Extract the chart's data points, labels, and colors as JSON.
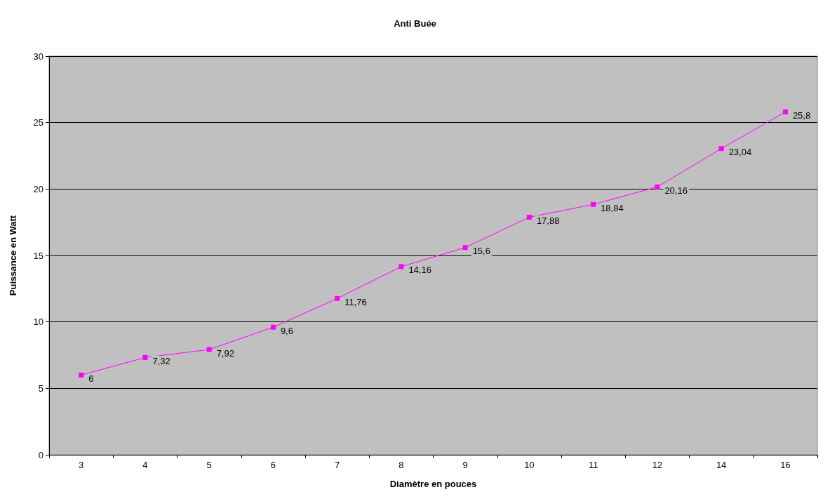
{
  "chart_data": {
    "type": "line",
    "title": "Anti Buée",
    "xlabel": "Diamètre en pouces",
    "ylabel": "Puissance en Watt",
    "categories": [
      "3",
      "4",
      "5",
      "6",
      "7",
      "8",
      "9",
      "10",
      "11",
      "12",
      "14",
      "16"
    ],
    "series": [
      {
        "color": "#ff00ff",
        "values": [
          6,
          7.32,
          7.92,
          9.6,
          11.76,
          14.16,
          15.6,
          17.88,
          18.84,
          20.16,
          23.04,
          25.8
        ],
        "value_labels": [
          "6",
          "7,32",
          "7,92",
          "9,6",
          "11,76",
          "14,16",
          "15,6",
          "17,88",
          "18,84",
          "20,16",
          "23,04",
          "25,8"
        ]
      }
    ],
    "ylim": [
      0,
      30
    ],
    "yticks": [
      0,
      5,
      10,
      15,
      20,
      25,
      30
    ],
    "grid": "y",
    "marker": "square",
    "line_style": "solid"
  }
}
